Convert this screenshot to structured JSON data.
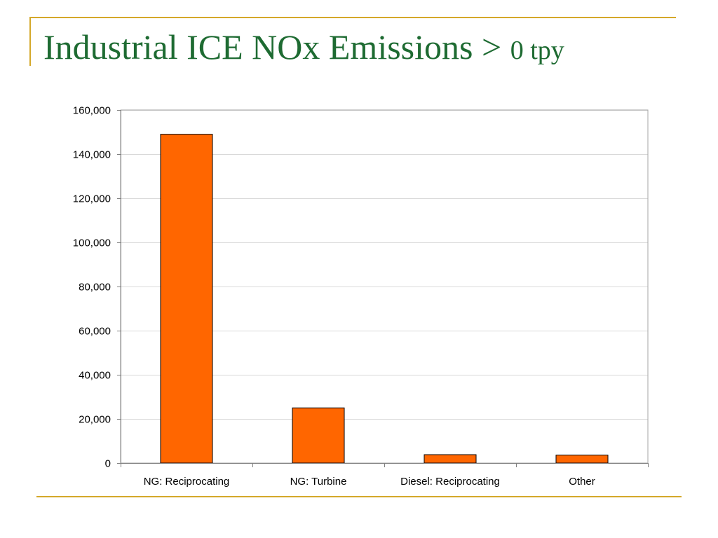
{
  "title": {
    "main": "Industrial ICE NOx Emissions >",
    "tail": "0 tpy"
  },
  "chart_data": {
    "type": "bar",
    "categories": [
      "NG: Reciprocating",
      "NG: Turbine",
      "Diesel: Reciprocating",
      "Other"
    ],
    "values": [
      149000,
      25000,
      3800,
      3600
    ],
    "ylim": [
      0,
      160000
    ],
    "yticks": [
      0,
      20000,
      40000,
      60000,
      80000,
      100000,
      120000,
      140000,
      160000
    ],
    "ytick_labels": [
      "0",
      "20,000",
      "40,000",
      "60,000",
      "80,000",
      "100,000",
      "120,000",
      "140,000",
      "160,000"
    ],
    "xlabel": "",
    "ylabel": "",
    "grid": true,
    "legend": "none",
    "bar_color": "#ff6600",
    "bar_edge_color": "#000000"
  }
}
